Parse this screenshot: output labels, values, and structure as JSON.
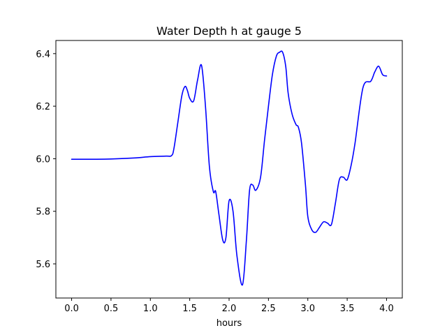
{
  "chart_data": {
    "type": "line",
    "title": "Water Depth h at gauge 5",
    "xlabel": "hours",
    "ylabel": "",
    "xlim": [
      -0.2,
      4.2
    ],
    "ylim": [
      5.47,
      6.45
    ],
    "xticks": [
      0.0,
      0.5,
      1.0,
      1.5,
      2.0,
      2.5,
      3.0,
      3.5,
      4.0
    ],
    "xtick_labels": [
      "0.0",
      "0.5",
      "1.0",
      "1.5",
      "2.0",
      "2.5",
      "3.0",
      "3.5",
      "4.0"
    ],
    "yticks": [
      5.6,
      5.8,
      6.0,
      6.2,
      6.4
    ],
    "ytick_labels": [
      "5.6",
      "5.8",
      "6.0",
      "6.2",
      "6.4"
    ],
    "grid": false,
    "series": [
      {
        "color": "#0000ff",
        "x": [
          0.0,
          0.3,
          0.5,
          0.8,
          1.0,
          1.2,
          1.27,
          1.3,
          1.35,
          1.4,
          1.44,
          1.47,
          1.5,
          1.55,
          1.6,
          1.65,
          1.7,
          1.75,
          1.8,
          1.83,
          1.87,
          1.92,
          1.96,
          2.0,
          2.05,
          2.1,
          2.17,
          2.22,
          2.26,
          2.3,
          2.34,
          2.4,
          2.45,
          2.5,
          2.55,
          2.6,
          2.64,
          2.68,
          2.72,
          2.75,
          2.8,
          2.85,
          2.88,
          2.92,
          2.97,
          3.0,
          3.05,
          3.1,
          3.15,
          3.2,
          3.25,
          3.3,
          3.35,
          3.4,
          3.45,
          3.5,
          3.55,
          3.6,
          3.7,
          3.8,
          3.85,
          3.9,
          3.95,
          4.0
        ],
        "y": [
          5.998,
          5.998,
          5.999,
          6.003,
          6.008,
          6.01,
          6.012,
          6.04,
          6.14,
          6.24,
          6.275,
          6.26,
          6.23,
          6.22,
          6.3,
          6.355,
          6.2,
          5.97,
          5.875,
          5.875,
          5.79,
          5.69,
          5.7,
          5.84,
          5.8,
          5.63,
          5.52,
          5.69,
          5.88,
          5.9,
          5.88,
          5.93,
          6.07,
          6.2,
          6.32,
          6.39,
          6.405,
          6.405,
          6.35,
          6.25,
          6.17,
          6.13,
          6.12,
          6.06,
          5.9,
          5.78,
          5.73,
          5.72,
          5.74,
          5.76,
          5.755,
          5.75,
          5.83,
          5.92,
          5.93,
          5.92,
          5.975,
          6.06,
          6.27,
          6.295,
          6.33,
          6.352,
          6.32,
          6.315
        ]
      }
    ]
  }
}
